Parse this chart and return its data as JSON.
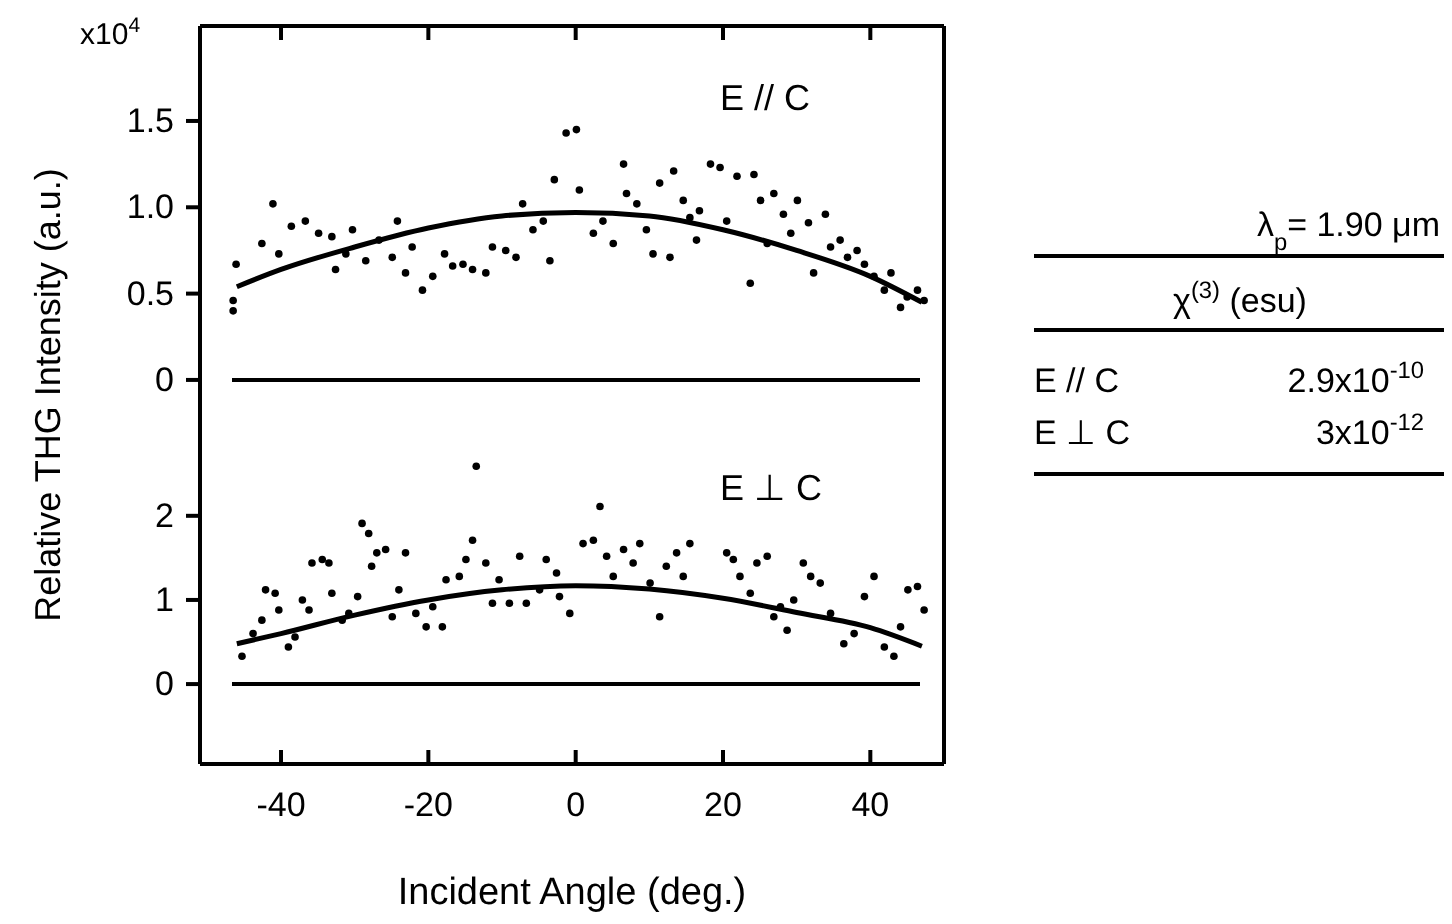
{
  "chart_data": [
    {
      "type": "scatter",
      "ylabel": "Relative THG Intensity (a.u.)",
      "annotations": [
        "x10$^{4}$",
        "E // C"
      ],
      "xlim": [
        -51,
        50
      ],
      "xticks": [
        {
          "value": -40,
          "label": null
        },
        {
          "value": -20,
          "label": null
        },
        {
          "value": 0,
          "label": null
        },
        {
          "value": 20,
          "label": null
        },
        {
          "value": 40,
          "label": null
        }
      ],
      "ylim": [
        -0.29,
        2.05
      ],
      "yticks": [
        0,
        {
          "value": 0.5,
          "label": "0.5"
        },
        {
          "value": 1,
          "label": "1.0"
        },
        {
          "value": 1.5,
          "label": "1.5"
        }
      ],
      "tick_labels": "y",
      "grid": false,
      "marker": "circle",
      "ref_lines": [
        {
          "axis": "y",
          "value": 0,
          "label": null,
          "color": "#000000"
        }
      ],
      "series": [
        {
          "type": "scatter",
          "color": "#000000",
          "x": [
            -46.5,
            -46.5,
            -46.1,
            -42.6,
            -41.1,
            -40.3,
            -38.6,
            -36.7,
            -34.9,
            -33.1,
            -32.6,
            -31.2,
            -30.3,
            -28.5,
            -26.7,
            -24.9,
            -24.2,
            -23.1,
            -22.2,
            -20.8,
            -19.4,
            -17.8,
            -16.7,
            -15.3,
            -14.0,
            -12.2,
            -11.3,
            -9.5,
            -8.1,
            -7.2,
            -5.8,
            -4.4,
            -3.5,
            -2.9,
            -1.3,
            0.1,
            0.5,
            2.4,
            3.7,
            5.1,
            6.5,
            6.9,
            8.3,
            9.6,
            10.5,
            11.4,
            12.8,
            13.3,
            14.6,
            15.5,
            16.4,
            16.8,
            18.3,
            19.6,
            20.5,
            21.9,
            23.7,
            24.2,
            25.1,
            26.0,
            26.9,
            28.2,
            29.2,
            30.1,
            31.6,
            32.3,
            33.9,
            34.6,
            35.9,
            36.9,
            38.2,
            39.2,
            40.5,
            41.9,
            42.8,
            44.1,
            45.0,
            46.4,
            47.3
          ],
          "values": [
            0.4,
            0.46,
            0.67,
            0.79,
            1.02,
            0.73,
            0.89,
            0.92,
            0.85,
            0.83,
            0.64,
            0.73,
            0.87,
            0.69,
            0.81,
            0.71,
            0.92,
            0.62,
            0.77,
            0.52,
            0.6,
            0.73,
            0.66,
            0.67,
            0.64,
            0.62,
            0.77,
            0.75,
            0.71,
            1.02,
            0.87,
            0.92,
            0.69,
            1.16,
            1.43,
            1.45,
            1.1,
            0.85,
            0.92,
            0.79,
            1.25,
            1.08,
            1.02,
            0.87,
            0.73,
            1.14,
            0.71,
            1.21,
            1.04,
            0.94,
            0.81,
            0.98,
            1.25,
            1.23,
            0.92,
            1.18,
            0.56,
            1.19,
            1.04,
            0.79,
            1.08,
            0.96,
            0.85,
            1.04,
            0.91,
            0.62,
            0.96,
            0.77,
            0.81,
            0.71,
            0.75,
            0.67,
            0.6,
            0.52,
            0.62,
            0.42,
            0.48,
            0.52,
            0.46
          ]
        },
        {
          "type": "line",
          "color": "#000000",
          "marker": "none",
          "line_style": "solid",
          "x": [
            -46,
            -40,
            -30,
            -20,
            -10,
            0,
            10,
            20,
            30,
            40,
            47
          ],
          "values": [
            0.54,
            0.64,
            0.77,
            0.88,
            0.95,
            0.97,
            0.95,
            0.87,
            0.75,
            0.6,
            0.45
          ]
        }
      ]
    },
    {
      "type": "scatter",
      "xlabel": "Incident Angle (deg.)",
      "annotations": [
        "E ⊥ C"
      ],
      "xlim": [
        -51,
        50
      ],
      "xticks": [
        -40,
        -20,
        0,
        20,
        40
      ],
      "ylim": [
        -0.95,
        3.02
      ],
      "yticks": [
        0,
        1,
        2
      ],
      "grid": false,
      "marker": "circle",
      "ref_lines": [
        {
          "axis": "y",
          "value": 0,
          "label": null,
          "color": "#000000"
        }
      ],
      "series": [
        {
          "type": "scatter",
          "color": "#000000",
          "x": [
            -45.3,
            -43.8,
            -42.6,
            -42.1,
            -40.8,
            -40.3,
            -39.0,
            -38.1,
            -37.1,
            -36.2,
            -35.8,
            -34.4,
            -33.5,
            -33.1,
            -31.7,
            -30.8,
            -29.6,
            -29.0,
            -28.1,
            -27.7,
            -27.0,
            -25.8,
            -24.9,
            -24.0,
            -23.1,
            -21.7,
            -20.3,
            -19.4,
            -18.1,
            -17.6,
            -15.8,
            -14.9,
            -14.0,
            -13.5,
            -12.2,
            -11.3,
            -10.4,
            -9.0,
            -7.6,
            -6.7,
            -4.9,
            -4.0,
            -2.6,
            -2.2,
            -0.8,
            1.0,
            2.4,
            3.3,
            4.2,
            5.1,
            6.5,
            7.8,
            8.7,
            10.1,
            11.4,
            12.3,
            13.7,
            14.6,
            15.5,
            20.5,
            21.4,
            22.3,
            23.7,
            24.6,
            26.0,
            26.9,
            27.8,
            28.7,
            29.6,
            30.9,
            31.9,
            33.2,
            34.6,
            36.4,
            37.8,
            39.2,
            40.5,
            41.9,
            43.2,
            44.1,
            45.1,
            46.4,
            47.3
          ],
          "values": [
            0.33,
            0.6,
            0.76,
            1.12,
            1.08,
            0.88,
            0.44,
            0.56,
            1.0,
            0.88,
            1.44,
            1.48,
            1.44,
            1.08,
            0.76,
            0.84,
            1.04,
            1.91,
            1.79,
            1.4,
            1.56,
            1.6,
            0.8,
            1.12,
            1.56,
            0.84,
            0.68,
            0.92,
            0.68,
            1.24,
            1.28,
            1.48,
            1.71,
            2.59,
            1.44,
            0.96,
            1.24,
            0.96,
            1.52,
            0.96,
            1.12,
            1.48,
            1.32,
            1.04,
            0.84,
            1.67,
            1.71,
            2.11,
            1.52,
            1.28,
            1.6,
            1.44,
            1.67,
            1.2,
            0.8,
            1.4,
            1.56,
            1.28,
            1.67,
            1.56,
            1.48,
            1.28,
            1.08,
            1.44,
            1.52,
            0.8,
            0.92,
            0.64,
            1.0,
            1.44,
            1.28,
            1.2,
            0.84,
            0.48,
            0.6,
            1.04,
            1.28,
            0.44,
            0.33,
            0.68,
            1.12,
            1.16,
            0.88
          ]
        },
        {
          "type": "line",
          "color": "#000000",
          "marker": "none",
          "line_style": "solid",
          "x": [
            -46,
            -40,
            -30,
            -20,
            -10,
            0,
            10,
            20,
            30,
            40,
            47
          ],
          "values": [
            0.48,
            0.6,
            0.82,
            1.0,
            1.12,
            1.17,
            1.13,
            1.02,
            0.85,
            0.67,
            0.45
          ]
        }
      ]
    },
    {
      "type": "other",
      "annotations": [
        "λ$_{p}$= 1.90 μm",
        "χ$^{(3)}$ (esu)",
        "E // C",
        "2.9x10$^{-10}$",
        "E ⊥ C",
        "3x10$^{-12}$"
      ]
    }
  ]
}
